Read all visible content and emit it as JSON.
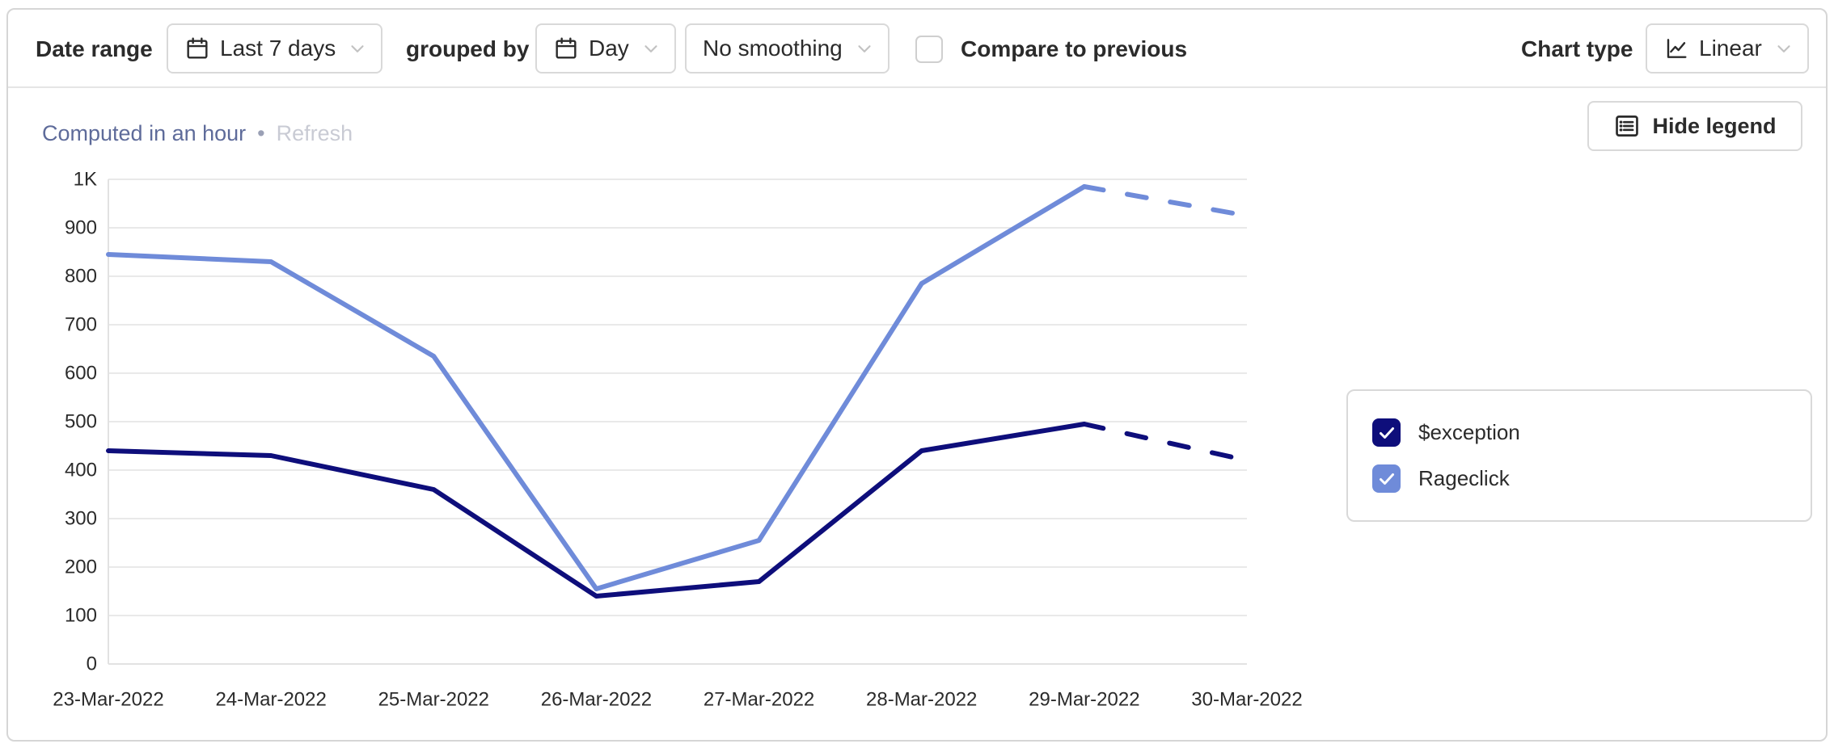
{
  "toolbar": {
    "date_range_label": "Date range",
    "date_range_value": "Last 7 days",
    "grouped_by_label": "grouped by",
    "interval_value": "Day",
    "smoothing_value": "No smoothing",
    "compare_label": "Compare to previous",
    "compare_checked": false,
    "chart_type_label": "Chart type",
    "chart_type_value": "Linear"
  },
  "status": {
    "computed_text": "Computed in an hour",
    "separator": "•",
    "refresh_label": "Refresh",
    "hide_legend_label": "Hide legend"
  },
  "legend": {
    "items": [
      {
        "label": "$exception",
        "color": "#0e0e7b",
        "checked": true
      },
      {
        "label": "Rageclick",
        "color": "#6f8bd9",
        "checked": true
      }
    ]
  },
  "chart_data": {
    "type": "line",
    "categories": [
      "23-Mar-2022",
      "24-Mar-2022",
      "25-Mar-2022",
      "26-Mar-2022",
      "27-Mar-2022",
      "28-Mar-2022",
      "29-Mar-2022",
      "30-Mar-2022"
    ],
    "series": [
      {
        "name": "$exception",
        "color": "#0e0e7b",
        "values": [
          440,
          430,
          360,
          140,
          170,
          440,
          495,
          420
        ],
        "dashed_from_index": 6
      },
      {
        "name": "Rageclick",
        "color": "#6f8bd9",
        "values": [
          845,
          830,
          635,
          155,
          255,
          785,
          985,
          925
        ],
        "dashed_from_index": 6
      }
    ],
    "title": "",
    "xlabel": "",
    "ylabel": "",
    "ylim": [
      0,
      1000
    ],
    "yticks": [
      0,
      100,
      200,
      300,
      400,
      500,
      600,
      700,
      800,
      900,
      1000
    ],
    "ytick_labels": [
      "0",
      "100",
      "200",
      "300",
      "400",
      "500",
      "600",
      "700",
      "800",
      "900",
      "1K"
    ],
    "grid": true,
    "legend_position": "right"
  }
}
